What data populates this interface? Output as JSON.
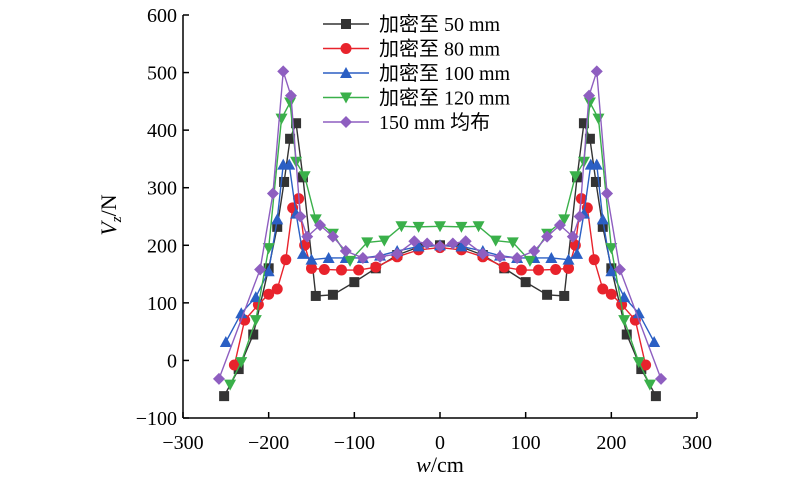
{
  "chart_data": {
    "type": "line",
    "title": "",
    "xlabel_var": "w",
    "xlabel_unit": "/cm",
    "ylabel_var": "V",
    "ylabel_sub": "z",
    "ylabel_unit": "/N",
    "xlim": [
      -300,
      300
    ],
    "ylim": [
      -100,
      600
    ],
    "xticks": [
      -300,
      -200,
      -100,
      0,
      100,
      200,
      300
    ],
    "yticks": [
      -100,
      0,
      100,
      200,
      300,
      400,
      500,
      600
    ],
    "xtick_labels": [
      "−300",
      "−200",
      "−100",
      "0",
      "100",
      "200",
      "300"
    ],
    "ytick_labels": [
      "−100",
      "0",
      "100",
      "200",
      "300",
      "400",
      "500",
      "600"
    ],
    "legend_position": "top-center",
    "series": [
      {
        "name": "加密至 50 mm",
        "color": "#333333",
        "marker": "square",
        "x": [
          -252,
          -235,
          -218,
          -200,
          -190,
          -182,
          -175,
          -168,
          -160,
          -145,
          -125,
          -100,
          -75,
          -50,
          -25,
          0,
          25,
          50,
          75,
          100,
          125,
          145,
          160,
          168,
          175,
          182,
          190,
          200,
          218,
          235,
          252
        ],
        "y": [
          -62,
          -15,
          45,
          160,
          232,
          310,
          385,
          412,
          318,
          112,
          114,
          136,
          160,
          183,
          197,
          200,
          197,
          183,
          160,
          136,
          114,
          112,
          318,
          412,
          385,
          310,
          232,
          160,
          45,
          -15,
          -62
        ]
      },
      {
        "name": "加密至 80 mm",
        "color": "#e8232c",
        "marker": "circle",
        "x": [
          -240,
          -228,
          -212,
          -200,
          -190,
          -180,
          -172,
          -165,
          -158,
          -150,
          -135,
          -115,
          -95,
          -75,
          -50,
          -25,
          0,
          25,
          50,
          75,
          95,
          115,
          135,
          150,
          158,
          165,
          172,
          180,
          190,
          200,
          212,
          228,
          240
        ],
        "y": [
          -8,
          70,
          97,
          115,
          124,
          175,
          265,
          281,
          200,
          160,
          158,
          157,
          157,
          162,
          180,
          192,
          196,
          192,
          180,
          162,
          157,
          157,
          158,
          160,
          200,
          281,
          265,
          175,
          124,
          115,
          97,
          70,
          -8
        ]
      },
      {
        "name": "加密至 100 mm",
        "color": "#2b5fc4",
        "marker": "triangle-up",
        "x": [
          -250,
          -232,
          -215,
          -200,
          -190,
          -183,
          -176,
          -168,
          -160,
          -150,
          -130,
          -110,
          -90,
          -70,
          -50,
          -25,
          0,
          25,
          50,
          70,
          90,
          110,
          130,
          150,
          160,
          168,
          176,
          183,
          190,
          200,
          215,
          232,
          250
        ],
        "y": [
          32,
          82,
          110,
          155,
          245,
          340,
          340,
          255,
          185,
          175,
          178,
          178,
          178,
          182,
          190,
          198,
          200,
          198,
          190,
          182,
          178,
          178,
          178,
          175,
          185,
          255,
          340,
          340,
          245,
          155,
          110,
          82,
          32
        ]
      },
      {
        "name": "加密至 120 mm",
        "color": "#3ab04a",
        "marker": "triangle-down",
        "x": [
          -245,
          -232,
          -215,
          -200,
          -185,
          -175,
          -168,
          -158,
          -145,
          -125,
          -105,
          -85,
          -65,
          -45,
          -25,
          0,
          25,
          45,
          65,
          85,
          105,
          125,
          145,
          158,
          168,
          175,
          185,
          200,
          215,
          232,
          245
        ],
        "y": [
          -42,
          -3,
          70,
          195,
          420,
          448,
          345,
          320,
          245,
          220,
          173,
          205,
          208,
          233,
          232,
          233,
          232,
          233,
          208,
          205,
          173,
          220,
          245,
          320,
          345,
          448,
          420,
          195,
          70,
          -3,
          -42
        ]
      },
      {
        "name": "150 mm 均布",
        "color": "#8e5ec0",
        "marker": "diamond",
        "x": [
          -258,
          -210,
          -195,
          -183,
          -174,
          -163,
          -155,
          -140,
          -125,
          -110,
          -90,
          -70,
          -50,
          -30,
          -15,
          0,
          15,
          30,
          50,
          70,
          90,
          110,
          125,
          140,
          155,
          163,
          174,
          183,
          195,
          210,
          258
        ],
        "y": [
          -32,
          158,
          290,
          502,
          460,
          250,
          215,
          235,
          215,
          190,
          178,
          180,
          185,
          207,
          203,
          198,
          203,
          207,
          185,
          180,
          178,
          190,
          215,
          235,
          215,
          250,
          460,
          502,
          290,
          158,
          -32
        ]
      }
    ]
  }
}
